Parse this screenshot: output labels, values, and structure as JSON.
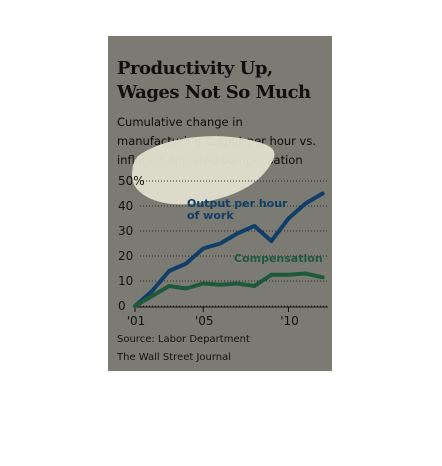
{
  "colors": {
    "card_bg": "#7c7b73",
    "output_line": "#103e68",
    "compensation_line": "#1d5a3a",
    "highlight": "#e2e0cf"
  },
  "header": {
    "title_line1": "Productivity Up,",
    "title_line2": "Wages Not So Much",
    "subtitle_line1": "Cumulative change in",
    "subtitle_line2": "manufacturing output per hour vs.",
    "subtitle_line3": "inflation-adjusted compensation"
  },
  "footer": {
    "source": "Source: Labor Department",
    "credit": "The Wall Street Journal"
  },
  "chart_data": {
    "type": "line",
    "title": "Productivity Up, Wages Not So Much",
    "subtitle": "Cumulative change in manufacturing output per hour vs. inflation-adjusted compensation",
    "x": [
      2001,
      2002,
      2003,
      2004,
      2005,
      2006,
      2007,
      2008,
      2009,
      2010,
      2011,
      2012
    ],
    "xticks": [
      {
        "value": 2001,
        "label": "'01"
      },
      {
        "value": 2005,
        "label": "'05"
      },
      {
        "value": 2010,
        "label": "'10"
      }
    ],
    "yticks": [
      0,
      10,
      20,
      30,
      40
    ],
    "ytick_top_label": "50%",
    "ylim": [
      0,
      50
    ],
    "xlim": [
      2001,
      2012.2
    ],
    "grid": "horizontal dotted",
    "series": [
      {
        "name": "Output per hour of work",
        "label_line1": "Output per hour",
        "label_line2": "of work",
        "values": [
          0,
          6,
          14,
          17,
          23,
          25,
          29,
          32,
          26,
          35,
          41,
          45
        ]
      },
      {
        "name": "Compensation",
        "label_line1": "Compensation",
        "values": [
          0,
          4,
          8,
          7,
          9,
          8.5,
          9,
          8,
          12.5,
          12.5,
          13,
          11.5
        ]
      }
    ]
  }
}
